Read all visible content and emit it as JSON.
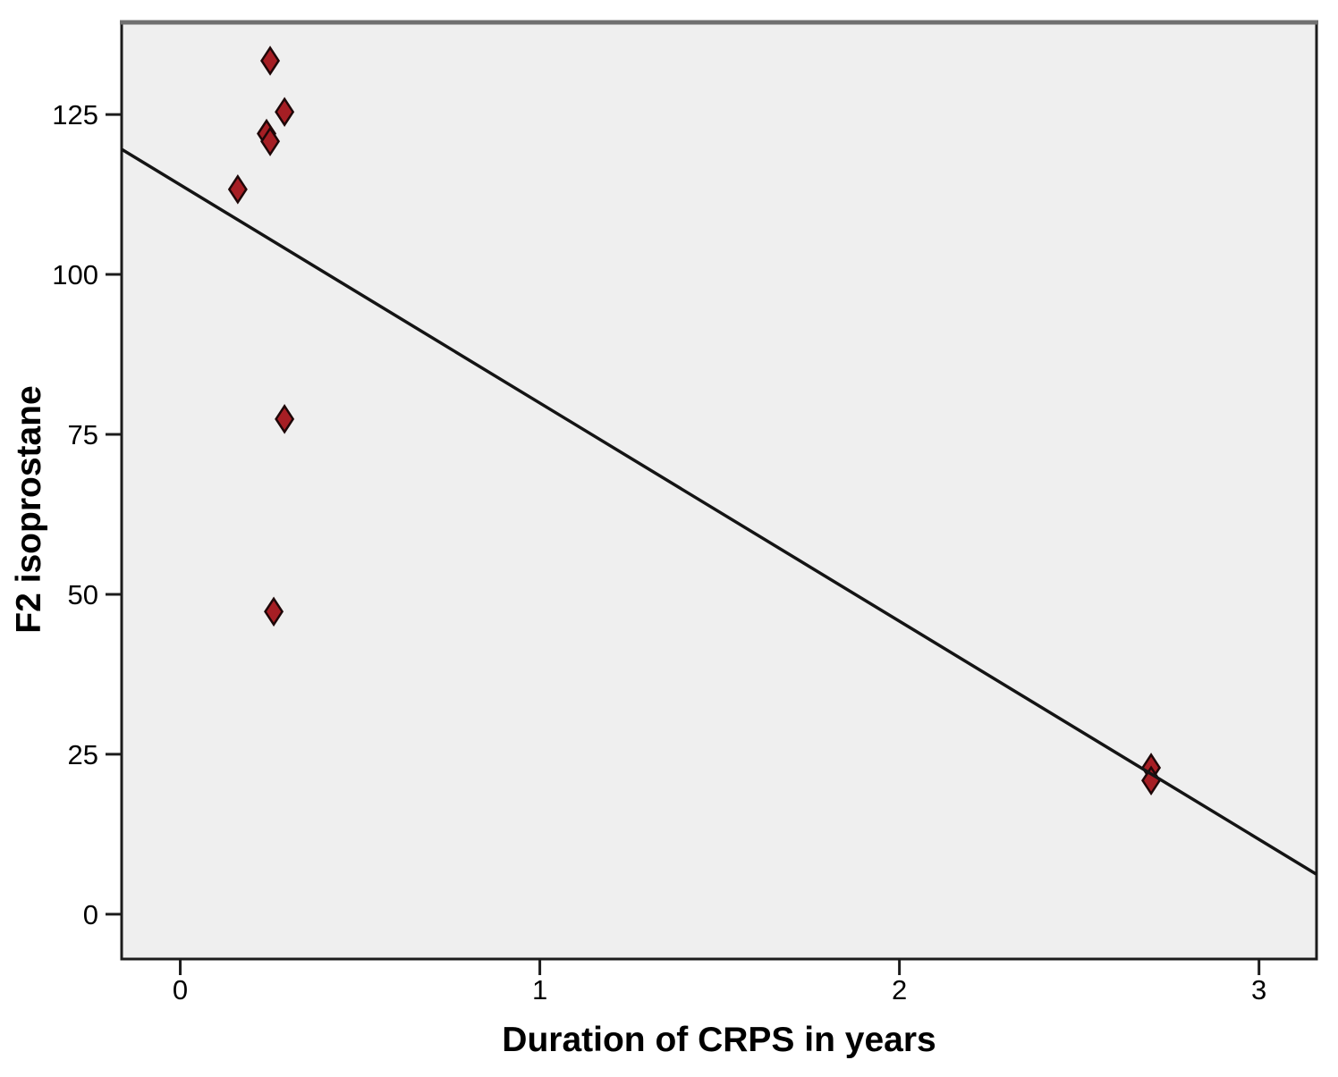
{
  "chart_data": {
    "type": "scatter",
    "title": "",
    "xlabel": "Duration of CRPS in years",
    "ylabel": "F2 isoprostane",
    "x_tick_labels": [
      "0",
      "1",
      "2",
      "3"
    ],
    "x_tick_values": [
      0,
      1,
      2,
      3
    ],
    "y_tick_labels": [
      "0",
      "25",
      "50",
      "75",
      "100",
      "125"
    ],
    "y_tick_values": [
      0,
      25,
      50,
      75,
      100,
      125
    ],
    "xlim": [
      -0.163,
      3.16
    ],
    "ylim": [
      -7.0,
      139.4
    ],
    "grid": false,
    "legend": "none",
    "marker": "diamond",
    "points": [
      {
        "x": 0.25,
        "y": 133.4
      },
      {
        "x": 0.29,
        "y": 125.4
      },
      {
        "x": 0.24,
        "y": 122.0
      },
      {
        "x": 0.25,
        "y": 120.8
      },
      {
        "x": 0.16,
        "y": 113.3
      },
      {
        "x": 0.29,
        "y": 77.4
      },
      {
        "x": 0.26,
        "y": 47.3
      },
      {
        "x": 2.7,
        "y": 22.9
      },
      {
        "x": 2.7,
        "y": 20.9
      }
    ],
    "fit_line": {
      "slope": -34.1,
      "intercept": 114.0
    }
  },
  "style": {
    "plot_background": "#efefef",
    "frame_color": "#1c1c1c",
    "frame_top_color": "#707070",
    "tick_color": "#1c1c1c",
    "marker_fill": "#a61e24",
    "marker_stroke": "#1e0708",
    "fit_line_color": "#141414",
    "text_color": "#000000"
  }
}
